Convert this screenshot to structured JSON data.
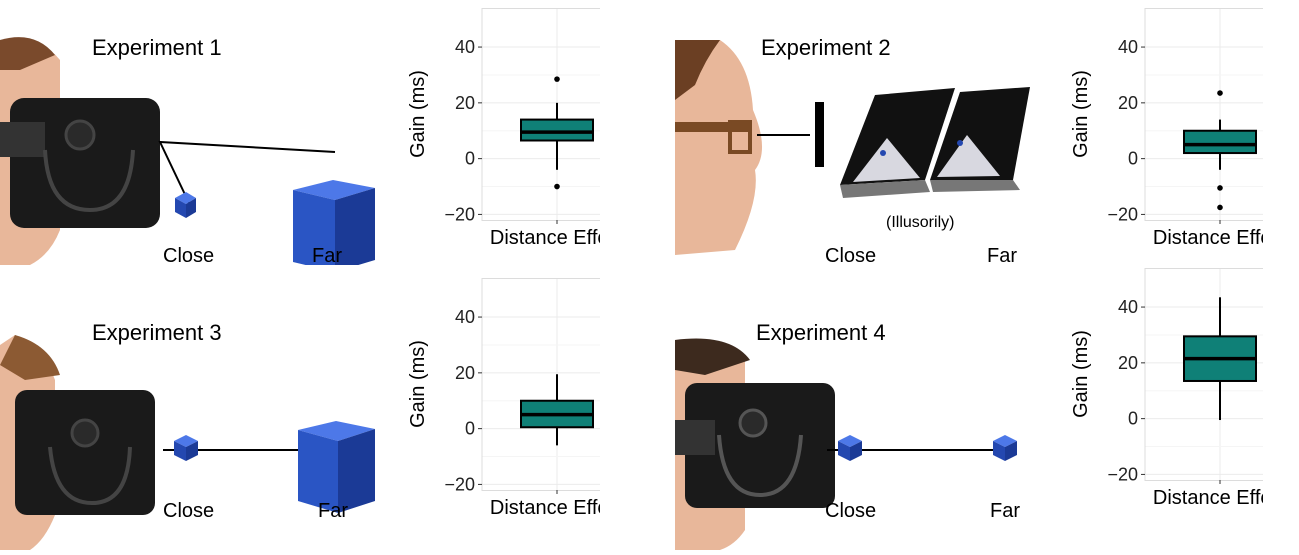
{
  "panels": [
    {
      "title": "Experiment 1",
      "labels": {
        "close": "Close",
        "far": "Far"
      },
      "illustration": "vr-headset-profile-with-close-small-cube-and-far-large-cube"
    },
    {
      "title": "Experiment 2",
      "labels": {
        "note": "(Illusorily)",
        "close": "Close",
        "far": "Far"
      },
      "illustration": "glasses-profile-viewing-stereoscopic-pair"
    },
    {
      "title": "Experiment 3",
      "labels": {
        "close": "Close",
        "far": "Far"
      },
      "illustration": "vr-headset-profile-with-close-small-cube-and-far-large-cube"
    },
    {
      "title": "Experiment 4",
      "labels": {
        "close": "Close",
        "far": "Far"
      },
      "illustration": "vr-headset-profile-with-close-and-far-small-cubes"
    }
  ],
  "colors": {
    "box_fill": "#0f8077",
    "grid": "#ebebeb",
    "cube": "#2d5bd6",
    "headset": "#1a1a1a"
  },
  "chart_data": [
    {
      "type": "box",
      "category": "Distance Effect",
      "ylabel": "Gain (ms)",
      "ylim": [
        -22,
        54
      ],
      "yticks": [
        "−20",
        "0",
        "20",
        "40"
      ],
      "ytick_values": [
        -20,
        0,
        20,
        40
      ],
      "box": {
        "whisker_low": -4,
        "q1": 6.5,
        "median": 9.5,
        "q3": 14,
        "whisker_high": 20
      },
      "outliers": [
        28.5,
        -10
      ]
    },
    {
      "type": "box",
      "category": "Distance Effect",
      "ylabel": "Gain (ms)",
      "ylim": [
        -22,
        54
      ],
      "yticks": [
        "−20",
        "0",
        "20",
        "40"
      ],
      "ytick_values": [
        -20,
        0,
        20,
        40
      ],
      "box": {
        "whisker_low": -4,
        "q1": 2,
        "median": 5,
        "q3": 10,
        "whisker_high": 14
      },
      "outliers": [
        23.5,
        -10.5,
        -17.5
      ]
    },
    {
      "type": "box",
      "category": "Distance Effect",
      "ylabel": "Gain (ms)",
      "ylim": [
        -22,
        54
      ],
      "yticks": [
        "−20",
        "0",
        "20",
        "40"
      ],
      "ytick_values": [
        -20,
        0,
        20,
        40
      ],
      "box": {
        "whisker_low": -6,
        "q1": 0.5,
        "median": 5,
        "q3": 10,
        "whisker_high": 19.5
      },
      "outliers": []
    },
    {
      "type": "box",
      "category": "Distance Effect",
      "ylabel": "Gain (ms)",
      "ylim": [
        -22,
        54
      ],
      "yticks": [
        "−20",
        "0",
        "20",
        "40"
      ],
      "ytick_values": [
        -20,
        0,
        20,
        40
      ],
      "box": {
        "whisker_low": -0.5,
        "q1": 13.5,
        "median": 21.5,
        "q3": 29.5,
        "whisker_high": 43.5
      },
      "outliers": []
    }
  ]
}
